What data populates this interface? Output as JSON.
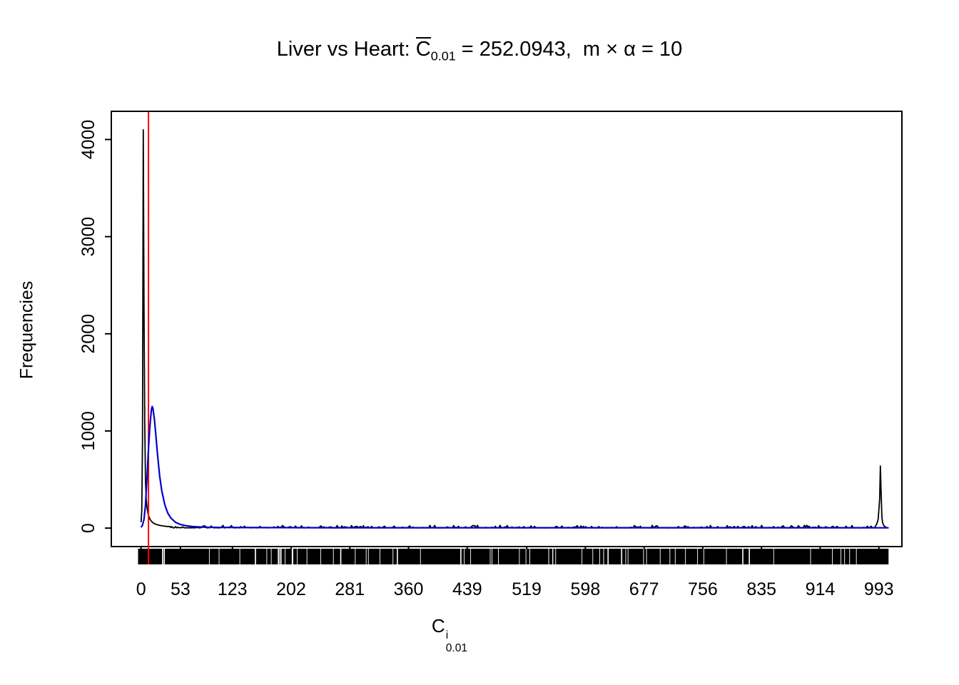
{
  "title": {
    "prefix": "Liver vs Heart: ",
    "c_base": "C",
    "c_sub": "0.01",
    "rest": " = 252.0943,  m × α = 10"
  },
  "axes": {
    "ylabel": "Frequencies",
    "xlabel_base": "C",
    "xlabel_sup": "i",
    "xlabel_sub": "0.01"
  },
  "chart_data": {
    "type": "line",
    "title": "Liver vs Heart: C̅0.01 = 252.0943, m × α = 10",
    "xlabel": "C^i_0.01",
    "ylabel": "Frequencies",
    "x_range": [
      -40,
      1024
    ],
    "y_range": [
      -190,
      4290
    ],
    "x_ticks": [
      0,
      53,
      123,
      202,
      281,
      360,
      439,
      519,
      598,
      677,
      756,
      835,
      914,
      993
    ],
    "y_ticks": [
      0,
      1000,
      2000,
      3000,
      4000
    ],
    "mean_value": 252.0943,
    "m_times_alpha": 10,
    "grid": false,
    "legend": false,
    "vline": {
      "x": 10,
      "color": "#ff0000"
    },
    "rug": {
      "from": -4,
      "to": 1006,
      "color": "#000000",
      "gap_count": 70,
      "seed": 7
    },
    "series": [
      {
        "name": "histogram-frequencies",
        "color": "#000000",
        "peak": {
          "x": 3,
          "y": 4100
        },
        "right_peak": {
          "x": 995,
          "y": 640
        },
        "points_left": [
          [
            0,
            60
          ],
          [
            1,
            180
          ],
          [
            2,
            900
          ],
          [
            3,
            4100
          ],
          [
            4,
            2300
          ],
          [
            5,
            1050
          ],
          [
            6,
            480
          ],
          [
            7,
            300
          ],
          [
            8,
            215
          ],
          [
            9,
            165
          ],
          [
            10,
            130
          ],
          [
            12,
            92
          ],
          [
            14,
            70
          ],
          [
            16,
            56
          ],
          [
            18,
            46
          ],
          [
            20,
            40
          ],
          [
            24,
            30
          ],
          [
            28,
            24
          ],
          [
            34,
            18
          ],
          [
            40,
            14
          ]
        ],
        "noise": {
          "from": 40,
          "to": 988,
          "step": 1.6,
          "base": 3,
          "amp": 26,
          "seed": 42
        },
        "points_right": [
          [
            988,
            16
          ],
          [
            990,
            40
          ],
          [
            992,
            90
          ],
          [
            994,
            300
          ],
          [
            995,
            640
          ],
          [
            996,
            380
          ],
          [
            997,
            120
          ],
          [
            998,
            55
          ],
          [
            1000,
            22
          ],
          [
            1003,
            6
          ],
          [
            1006,
            1
          ]
        ]
      },
      {
        "name": "density-curve",
        "color": "#0000cd",
        "points": [
          [
            0,
            8
          ],
          [
            2,
            30
          ],
          [
            4,
            90
          ],
          [
            6,
            240
          ],
          [
            8,
            520
          ],
          [
            10,
            820
          ],
          [
            12,
            1060
          ],
          [
            14,
            1220
          ],
          [
            15,
            1252
          ],
          [
            16,
            1235
          ],
          [
            18,
            1120
          ],
          [
            20,
            950
          ],
          [
            22,
            770
          ],
          [
            25,
            540
          ],
          [
            28,
            380
          ],
          [
            32,
            240
          ],
          [
            36,
            155
          ],
          [
            40,
            105
          ],
          [
            46,
            62
          ],
          [
            52,
            40
          ],
          [
            60,
            25
          ],
          [
            70,
            16
          ],
          [
            85,
            10
          ],
          [
            110,
            7
          ],
          [
            160,
            5
          ],
          [
            260,
            4
          ],
          [
            420,
            4
          ],
          [
            640,
            4
          ],
          [
            860,
            4
          ],
          [
            1006,
            3
          ]
        ]
      }
    ]
  }
}
